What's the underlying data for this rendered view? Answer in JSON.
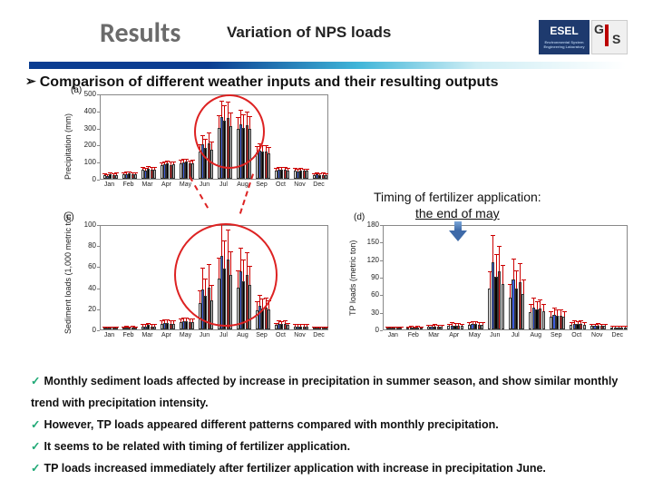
{
  "header": {
    "title": "Results",
    "subtitle": "Variation of NPS loads",
    "logo_esel": "ESEL",
    "logo_gis_g": "G",
    "logo_gis_s": "S"
  },
  "intro_text": "Comparison of different weather inputs and their resulting outputs",
  "annotation": {
    "line1": "Timing of fertilizer application:",
    "line2": "the end of may"
  },
  "months": [
    "Jan",
    "Feb",
    "Mar",
    "Apr",
    "May",
    "Jun",
    "Jul",
    "Aug",
    "Sep",
    "Oct",
    "Nov",
    "Dec"
  ],
  "series_colors": [
    "#ffffff",
    "#3b5bdc",
    "#000000",
    "#d81e1e",
    "#bdbdbd"
  ],
  "series_border": "#333333",
  "error_color": "#c00000",
  "chart_a": {
    "tag": "(a)",
    "ylabel": "Precipitation (mm)",
    "ylim": [
      0,
      500
    ],
    "ytick_step": 100,
    "values": [
      [
        22,
        18,
        25,
        20,
        24
      ],
      [
        25,
        28,
        30,
        26,
        27
      ],
      [
        55,
        50,
        58,
        52,
        54
      ],
      [
        80,
        85,
        90,
        82,
        84
      ],
      [
        92,
        95,
        100,
        90,
        93
      ],
      [
        160,
        200,
        180,
        210,
        170
      ],
      [
        300,
        360,
        340,
        355,
        310
      ],
      [
        290,
        320,
        300,
        315,
        295
      ],
      [
        155,
        165,
        160,
        158,
        150
      ],
      [
        50,
        55,
        52,
        54,
        48
      ],
      [
        48,
        45,
        50,
        46,
        47
      ],
      [
        22,
        25,
        23,
        24,
        22
      ]
    ],
    "errors": [
      [
        8,
        7,
        9,
        8,
        8
      ],
      [
        9,
        10,
        9,
        8,
        9
      ],
      [
        12,
        11,
        13,
        12,
        12
      ],
      [
        15,
        14,
        16,
        15,
        15
      ],
      [
        17,
        18,
        17,
        16,
        17
      ],
      [
        40,
        55,
        50,
        58,
        45
      ],
      [
        70,
        95,
        90,
        92,
        78
      ],
      [
        68,
        80,
        75,
        78,
        70
      ],
      [
        35,
        38,
        36,
        35,
        33
      ],
      [
        12,
        14,
        12,
        13,
        11
      ],
      [
        11,
        10,
        12,
        11,
        11
      ],
      [
        8,
        9,
        8,
        9,
        8
      ]
    ]
  },
  "chart_c": {
    "tag": "(c)",
    "ylabel": "Sediment loads (1,000 metric ton)",
    "ylim": [
      0,
      100
    ],
    "ytick_step": 20,
    "values": [
      [
        1,
        1,
        1,
        1,
        1
      ],
      [
        1,
        2,
        1,
        2,
        1
      ],
      [
        3,
        3,
        4,
        3,
        3
      ],
      [
        5,
        6,
        6,
        5,
        5
      ],
      [
        7,
        8,
        8,
        7,
        7
      ],
      [
        25,
        38,
        32,
        40,
        28
      ],
      [
        48,
        70,
        58,
        66,
        52
      ],
      [
        40,
        55,
        46,
        52,
        42
      ],
      [
        18,
        22,
        20,
        21,
        19
      ],
      [
        4,
        5,
        5,
        5,
        4
      ],
      [
        3,
        3,
        3,
        3,
        3
      ],
      [
        1,
        1,
        1,
        1,
        1
      ]
    ],
    "errors": [
      [
        1,
        1,
        1,
        1,
        1
      ],
      [
        1,
        1,
        1,
        1,
        1
      ],
      [
        2,
        2,
        2,
        2,
        2
      ],
      [
        3,
        3,
        3,
        3,
        3
      ],
      [
        3,
        3,
        3,
        3,
        3
      ],
      [
        12,
        20,
        16,
        22,
        14
      ],
      [
        20,
        30,
        26,
        28,
        22
      ],
      [
        16,
        22,
        20,
        21,
        18
      ],
      [
        8,
        10,
        9,
        9,
        8
      ],
      [
        2,
        3,
        2,
        3,
        2
      ],
      [
        2,
        2,
        2,
        2,
        2
      ],
      [
        1,
        1,
        1,
        1,
        1
      ]
    ]
  },
  "chart_d": {
    "tag": "(d)",
    "ylabel": "TP loads (metric ton)",
    "ylim": [
      0,
      180
    ],
    "ytick_step": 30,
    "values": [
      [
        2,
        2,
        2,
        2,
        2
      ],
      [
        2,
        3,
        2,
        3,
        2
      ],
      [
        4,
        4,
        5,
        4,
        4
      ],
      [
        6,
        7,
        7,
        6,
        6
      ],
      [
        8,
        9,
        9,
        8,
        8
      ],
      [
        70,
        115,
        90,
        100,
        78
      ],
      [
        55,
        85,
        70,
        80,
        60
      ],
      [
        30,
        38,
        34,
        36,
        31
      ],
      [
        22,
        25,
        24,
        24,
        22
      ],
      [
        8,
        10,
        9,
        10,
        8
      ],
      [
        6,
        6,
        7,
        6,
        6
      ],
      [
        3,
        3,
        3,
        3,
        3
      ]
    ],
    "errors": [
      [
        2,
        2,
        2,
        2,
        2
      ],
      [
        2,
        2,
        2,
        2,
        2
      ],
      [
        3,
        3,
        3,
        3,
        3
      ],
      [
        3,
        4,
        3,
        4,
        3
      ],
      [
        4,
        4,
        4,
        4,
        4
      ],
      [
        28,
        45,
        38,
        42,
        32
      ],
      [
        22,
        35,
        30,
        33,
        25
      ],
      [
        12,
        16,
        14,
        15,
        12
      ],
      [
        9,
        11,
        10,
        10,
        9
      ],
      [
        4,
        5,
        4,
        5,
        4
      ],
      [
        3,
        3,
        3,
        3,
        3
      ],
      [
        2,
        2,
        2,
        2,
        2
      ]
    ]
  },
  "bullets": [
    "Monthly sediment loads affected by increase in precipitation in summer season, and show similar monthly trend with precipitation intensity.",
    "However, TP loads appeared different patterns compared with monthly precipitation.",
    "It seems to be related with timing of fertilizer application.",
    "TP loads increased immediately after fertilizer application with increase in precipitation June."
  ]
}
